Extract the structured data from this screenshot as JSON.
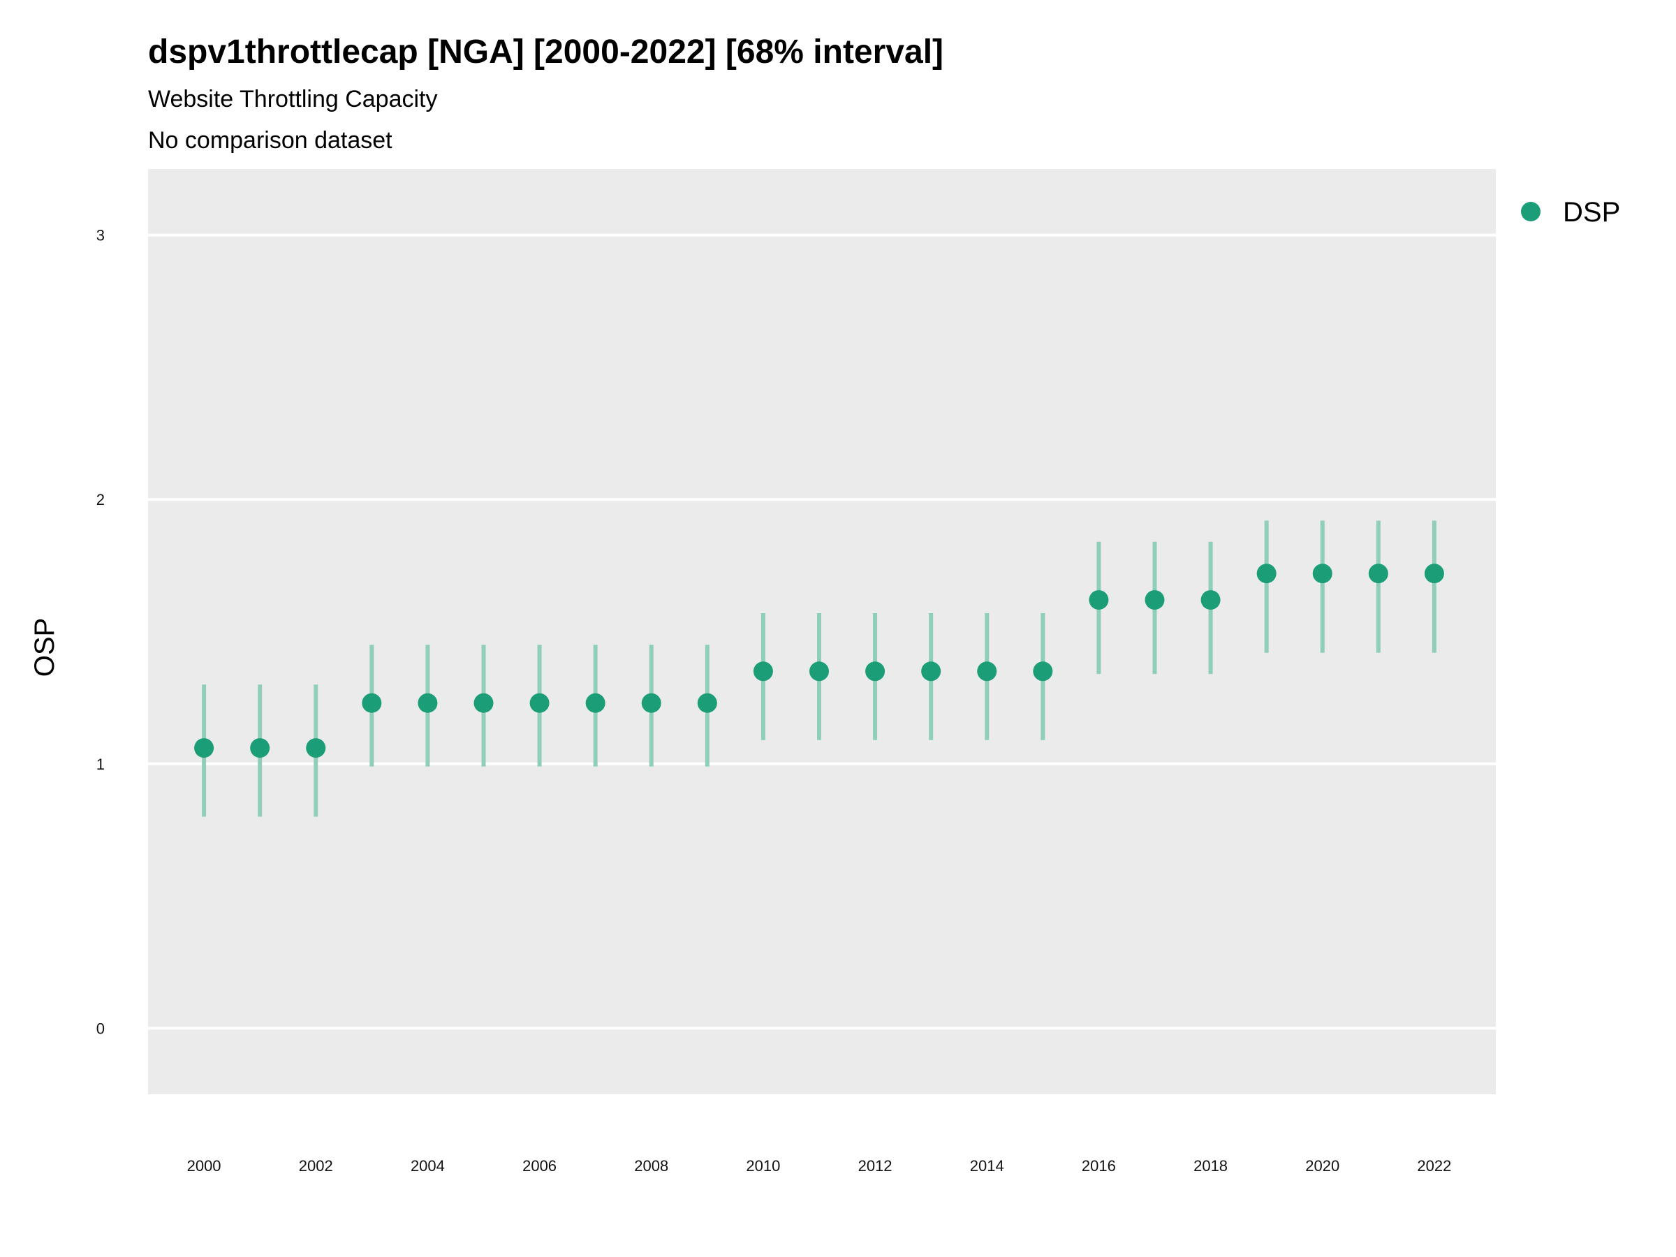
{
  "chart_data": {
    "type": "scatter",
    "title": "dspv1throttlecap [NGA] [2000-2022] [68% interval]",
    "subtitle": "Website Throttling Capacity",
    "subtitle2": "No comparison dataset",
    "xlabel": "",
    "ylabel": "OSP",
    "xlim": [
      1999,
      2023.1
    ],
    "ylim": [
      -0.25,
      3.25
    ],
    "yticks": [
      "0",
      "1",
      "2",
      "3"
    ],
    "xticks": [
      "2000",
      "2002",
      "2004",
      "2006",
      "2008",
      "2010",
      "2012",
      "2014",
      "2016",
      "2018",
      "2020",
      "2022"
    ],
    "grid": true,
    "legend_position": "top-right",
    "colors": {
      "series": "#1b9e77",
      "interval": "#8fcfb9",
      "panel": "#ebebeb",
      "grid": "#ffffff"
    },
    "series": [
      {
        "name": "DSP",
        "x": [
          2000,
          2001,
          2002,
          2003,
          2004,
          2005,
          2006,
          2007,
          2008,
          2009,
          2010,
          2011,
          2012,
          2013,
          2014,
          2015,
          2016,
          2017,
          2018,
          2019,
          2020,
          2021,
          2022
        ],
        "y": [
          1.06,
          1.06,
          1.06,
          1.23,
          1.23,
          1.23,
          1.23,
          1.23,
          1.23,
          1.23,
          1.35,
          1.35,
          1.35,
          1.35,
          1.35,
          1.35,
          1.62,
          1.62,
          1.62,
          1.72,
          1.72,
          1.72,
          1.72
        ],
        "lower": [
          0.8,
          0.8,
          0.8,
          0.99,
          0.99,
          0.99,
          0.99,
          0.99,
          0.99,
          0.99,
          1.09,
          1.09,
          1.09,
          1.09,
          1.09,
          1.09,
          1.34,
          1.34,
          1.34,
          1.42,
          1.42,
          1.42,
          1.42
        ],
        "upper": [
          1.3,
          1.3,
          1.3,
          1.45,
          1.45,
          1.45,
          1.45,
          1.45,
          1.45,
          1.45,
          1.57,
          1.57,
          1.57,
          1.57,
          1.57,
          1.57,
          1.84,
          1.84,
          1.84,
          1.92,
          1.92,
          1.92,
          1.92
        ]
      }
    ]
  }
}
